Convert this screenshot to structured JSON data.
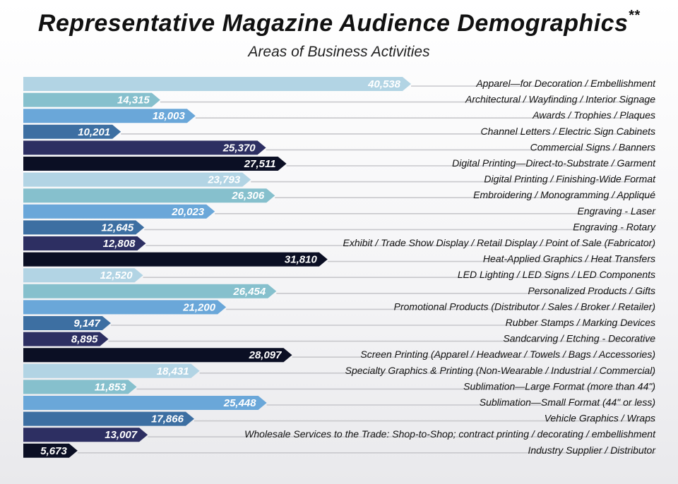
{
  "header": {
    "title": "Representative Magazine Audience Demographics",
    "title_mark": "**",
    "subtitle": "Areas of Business Activities"
  },
  "chart_data": {
    "type": "bar",
    "orientation": "horizontal",
    "title": "Representative Magazine Audience Demographics**",
    "subtitle": "Areas of Business Activities",
    "xlim": [
      0,
      40538
    ],
    "grid": false,
    "categories": [
      "Apparel—for Decoration / Embellishment",
      "Architectural / Wayfinding / Interior Signage",
      "Awards / Trophies / Plaques",
      "Channel Letters / Electric Sign Cabinets",
      "Commercial Signs / Banners",
      "Digital Printing—Direct-to-Substrate / Garment",
      "Digital Printing / Finishing-Wide Format",
      "Embroidering / Monogramming / Appliqué",
      "Engraving - Laser",
      "Engraving - Rotary",
      "Exhibit / Trade Show Display / Retail Display / Point of Sale (Fabricator)",
      "Heat-Applied Graphics / Heat Transfers",
      "LED Lighting / LED Signs / LED Components",
      "Personalized Products / Gifts",
      "Promotional Products (Distributor / Sales / Broker / Retailer)",
      "Rubber Stamps / Marking Devices",
      "Sandcarving / Etching - Decorative",
      "Screen Printing (Apparel / Headwear / Towels / Bags / Accessories)",
      "Specialty Graphics & Printing (Non-Wearable / Industrial / Commercial)",
      "Sublimation—Large Format (more than 44\")",
      "Sublimation—Small Format (44\" or less)",
      "Vehicle Graphics / Wraps",
      "Wholesale Services to the Trade: Shop-to-Shop; contract printing / decorating / embellishment",
      "Industry Supplier / Distributor"
    ],
    "values": [
      40538,
      14315,
      18003,
      10201,
      25370,
      27511,
      23793,
      26306,
      20023,
      12645,
      12808,
      31810,
      12520,
      26454,
      21200,
      9147,
      8895,
      28097,
      18431,
      11853,
      25448,
      17866,
      13007,
      5673
    ],
    "value_labels": [
      "40,538",
      "14,315",
      "18,003",
      "10,201",
      "25,370",
      "27,511",
      "23,793",
      "26,306",
      "20,023",
      "12,645",
      "12,808",
      "31,810",
      "12,520",
      "26,454",
      "21,200",
      "9,147",
      "8,895",
      "28,097",
      "18,431",
      "11,853",
      "25,448",
      "17,866",
      "13,007",
      "5,673"
    ],
    "colors": [
      "#b2d4e4",
      "#86c0cd",
      "#6aa7d9",
      "#3d6fa2",
      "#2d2f62",
      "#0b0f24",
      "#b2d4e4",
      "#86c0cd",
      "#6aa7d9",
      "#3d6fa2",
      "#2d2f62",
      "#0b0f24",
      "#b2d4e4",
      "#86c0cd",
      "#6aa7d9",
      "#3d6fa2",
      "#2d2f62",
      "#0b0f24",
      "#b2d4e4",
      "#86c0cd",
      "#6aa7d9",
      "#3d6fa2",
      "#2d2f62",
      "#0b0f24"
    ],
    "leader_color": "#c8c8cc"
  }
}
